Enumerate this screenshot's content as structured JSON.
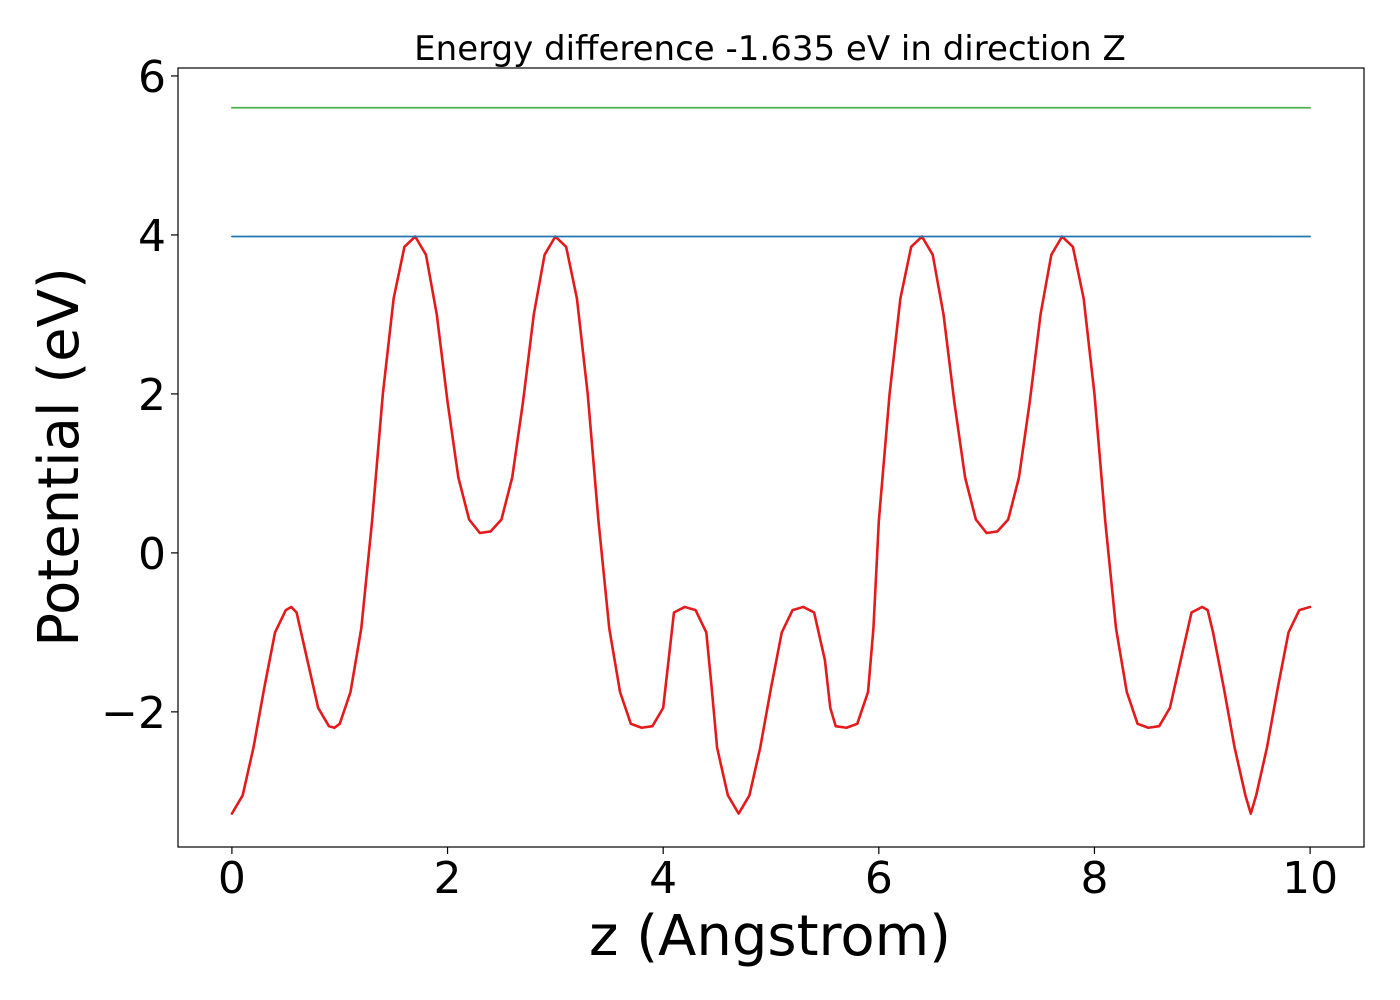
{
  "chart_data": {
    "type": "line",
    "title": "Energy difference -1.635 eV in direction Z",
    "xlabel": "z (Angstrom)",
    "ylabel": "Potential (eV)",
    "xlim": [
      -0.5,
      10.5
    ],
    "ylim": [
      -3.7,
      6.1
    ],
    "xticks": [
      0,
      2,
      4,
      6,
      8,
      10
    ],
    "yticks": [
      -2,
      0,
      2,
      4,
      6
    ],
    "xtick_labels": [
      "0",
      "2",
      "4",
      "6",
      "8",
      "10"
    ],
    "ytick_labels": [
      "−2",
      "0",
      "2",
      "4",
      "6"
    ],
    "grid": false,
    "series": [
      {
        "color": "#e41a1c",
        "x": [
          0,
          0.1,
          0.2,
          0.3,
          0.4,
          0.5,
          0.55,
          0.6,
          0.7,
          0.8,
          0.9,
          0.95,
          1.0,
          1.1,
          1.2,
          1.3,
          1.4,
          1.5,
          1.6,
          1.7,
          1.8,
          1.9,
          2.0,
          2.1,
          2.2,
          2.3,
          2.4,
          2.5,
          2.6,
          2.7,
          2.8,
          2.9,
          3.0,
          3.1,
          3.2,
          3.3,
          3.4,
          3.5,
          3.6,
          3.7,
          3.8,
          3.9,
          4.0,
          4.05,
          4.1,
          4.2,
          4.3,
          4.4,
          4.45,
          4.5,
          4.6,
          4.7,
          4.8,
          4.9,
          5.0,
          5.1,
          5.2,
          5.3,
          5.4,
          5.5,
          5.55,
          5.6,
          5.7,
          5.8,
          5.9,
          5.95,
          6.0,
          6.1,
          6.2,
          6.3,
          6.4,
          6.5,
          6.6,
          6.7,
          6.8,
          6.9,
          7.0,
          7.1,
          7.2,
          7.3,
          7.4,
          7.5,
          7.6,
          7.7,
          7.8,
          7.9,
          8.0,
          8.1,
          8.2,
          8.3,
          8.4,
          8.5,
          8.6,
          8.7,
          8.8,
          8.9,
          9.0,
          9.05,
          9.1,
          9.2,
          9.3,
          9.4,
          9.45,
          9.5,
          9.6,
          9.7,
          9.8,
          9.9,
          10.0
        ],
        "y": [
          -3.28,
          -3.05,
          -2.45,
          -1.7,
          -1.0,
          -0.72,
          -0.68,
          -0.75,
          -1.35,
          -1.95,
          -2.18,
          -2.2,
          -2.15,
          -1.75,
          -0.95,
          0.4,
          2.0,
          3.2,
          3.85,
          3.98,
          3.75,
          3.0,
          1.9,
          0.95,
          0.42,
          0.25,
          0.27,
          0.42,
          0.95,
          1.9,
          3.0,
          3.75,
          3.98,
          3.85,
          3.2,
          2.0,
          0.4,
          -0.95,
          -1.75,
          -2.15,
          -2.2,
          -2.18,
          -1.95,
          -1.35,
          -0.75,
          -0.68,
          -0.72,
          -1.0,
          -1.7,
          -2.45,
          -3.05,
          -3.28,
          -3.05,
          -2.45,
          -1.7,
          -1.0,
          -0.72,
          -0.68,
          -0.75,
          -1.35,
          -1.95,
          -2.18,
          -2.2,
          -2.15,
          -1.75,
          -0.95,
          0.4,
          2.0,
          3.2,
          3.85,
          3.98,
          3.75,
          3.0,
          1.9,
          0.95,
          0.42,
          0.25,
          0.27,
          0.42,
          0.95,
          1.9,
          3.0,
          3.75,
          3.98,
          3.85,
          3.2,
          2.0,
          0.4,
          -0.95,
          -1.75,
          -2.15,
          -2.2,
          -2.18,
          -1.95,
          -1.35,
          -0.75,
          -0.68,
          -0.72,
          -1.0,
          -1.7,
          -2.45,
          -3.05,
          -3.28,
          -3.05,
          -2.45,
          -1.7,
          -1.0,
          -0.72,
          -0.68
        ]
      },
      {
        "color": "#1f77b4",
        "x": [
          0,
          10
        ],
        "y": [
          3.98,
          3.98
        ]
      },
      {
        "color": "#4daf4a",
        "x": [
          0,
          10
        ],
        "y": [
          5.6,
          5.6
        ]
      }
    ]
  }
}
